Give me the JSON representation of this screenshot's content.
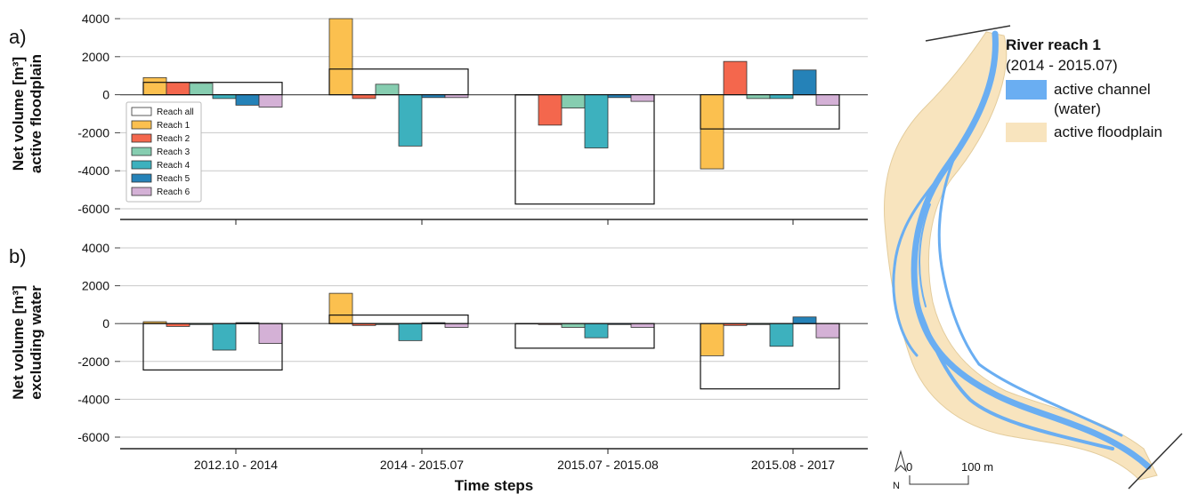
{
  "chart_data": [
    {
      "type": "bar",
      "panel": "a)",
      "ylabel_line1": "Net volume [m³]",
      "ylabel_line2": "active floodplain",
      "ylim": [
        -6000,
        4000
      ],
      "yticks": [
        "4000",
        "2000",
        "0",
        "-2000",
        "-4000",
        "-6000"
      ],
      "grid": true,
      "categories": [
        "2012.10 - 2014",
        "2014 - 2015.07",
        "2015.07 - 2015.08",
        "2015.08 - 2017"
      ],
      "reach_all_values": [
        650,
        1350,
        -5750,
        -1800
      ],
      "series": [
        {
          "name": "Reach 1",
          "color": "#FBC04F",
          "values": [
            900,
            4000,
            0,
            -3900
          ]
        },
        {
          "name": "Reach 2",
          "color": "#F4674D",
          "values": [
            650,
            -200,
            -1600,
            1750
          ]
        },
        {
          "name": "Reach 3",
          "color": "#86CDB0",
          "values": [
            600,
            550,
            -700,
            -200
          ]
        },
        {
          "name": "Reach 4",
          "color": "#3DB1BE",
          "values": [
            -200,
            -2700,
            -2800,
            -200
          ]
        },
        {
          "name": "Reach 5",
          "color": "#2582B8",
          "values": [
            -550,
            -150,
            -150,
            1300
          ]
        },
        {
          "name": "Reach 6",
          "color": "#D4B1D6",
          "values": [
            -650,
            -150,
            -350,
            -550
          ]
        }
      ],
      "legend": {
        "placement": "lower-left",
        "entries": [
          "Reach all",
          "Reach 1",
          "Reach 2",
          "Reach 3",
          "Reach 4",
          "Reach 5",
          "Reach 6"
        ]
      }
    },
    {
      "type": "bar",
      "panel": "b)",
      "ylabel_line1": "Net volume [m³]",
      "ylabel_line2": "excluding water",
      "ylim": [
        -6000,
        4000
      ],
      "yticks": [
        "4000",
        "2000",
        "0",
        "-2000",
        "-4000",
        "-6000"
      ],
      "grid": true,
      "xlabel": "Time steps",
      "categories": [
        "2012.10 - 2014",
        "2014 - 2015.07",
        "2015.07 - 2015.08",
        "2015.08 - 2017"
      ],
      "reach_all_values": [
        -2450,
        450,
        -1300,
        -3450
      ],
      "series": [
        {
          "name": "Reach 1",
          "color": "#FBC04F",
          "values": [
            100,
            1600,
            -20,
            -1700
          ]
        },
        {
          "name": "Reach 2",
          "color": "#F4674D",
          "values": [
            -150,
            -100,
            -50,
            -100
          ]
        },
        {
          "name": "Reach 3",
          "color": "#86CDB0",
          "values": [
            -50,
            -50,
            -200,
            -50
          ]
        },
        {
          "name": "Reach 4",
          "color": "#3DB1BE",
          "values": [
            -1400,
            -900,
            -750,
            -1200
          ]
        },
        {
          "name": "Reach 5",
          "color": "#2582B8",
          "values": [
            50,
            50,
            -50,
            350
          ]
        },
        {
          "name": "Reach 6",
          "color": "#D4B1D6",
          "values": [
            -1050,
            -200,
            -200,
            -750
          ]
        }
      ]
    }
  ],
  "map_legend": {
    "title": "River reach 1",
    "subtitle": "(2014 - 2015.07)",
    "items": [
      {
        "label": "active channel (water)",
        "color": "#6AAEF2"
      },
      {
        "label": "active floodplain",
        "color": "#F8E4BE"
      }
    ]
  },
  "map": {
    "north_label": "N",
    "scale_start": "0",
    "scale_end": "100 m"
  }
}
